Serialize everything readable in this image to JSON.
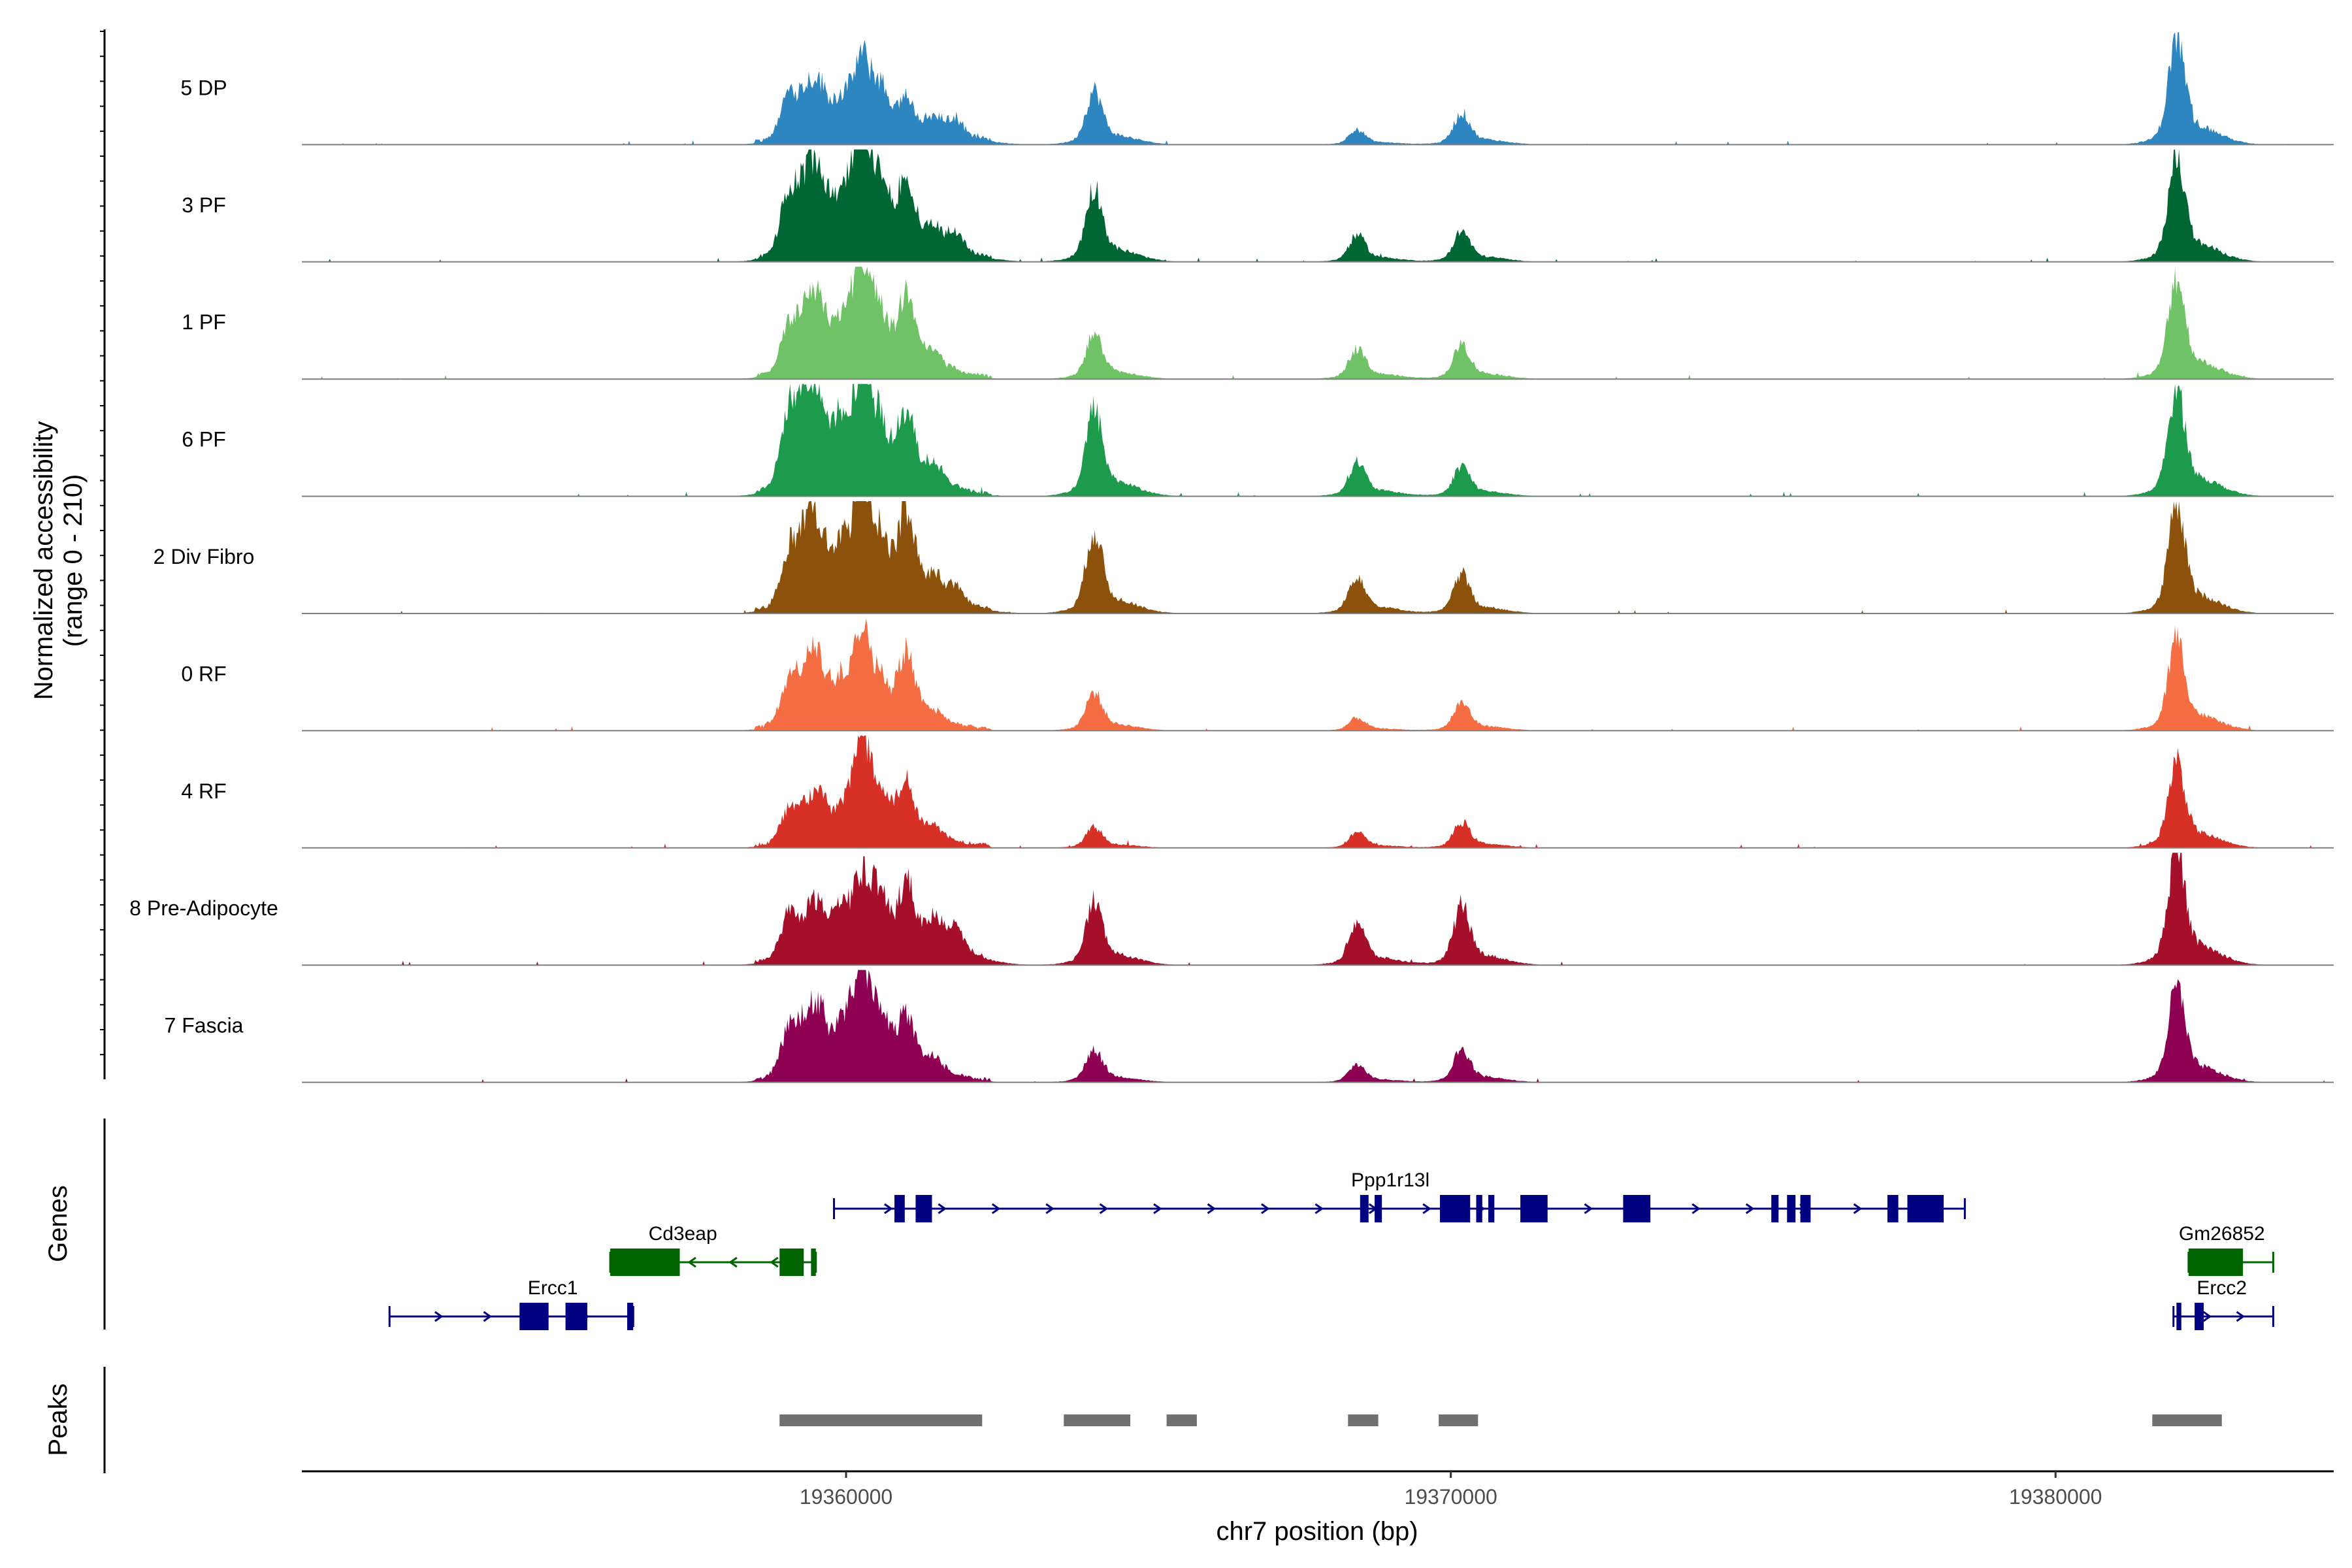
{
  "chart_data": {
    "type": "area",
    "title": "",
    "chromosome": "chr7",
    "xlabel": "chr7 position (bp)",
    "ylabel": "Normalized accessibility",
    "ylabel_range": "(range 0 - 210)",
    "xlim": [
      19351000,
      19384600
    ],
    "ylim": [
      0,
      210
    ],
    "x_ticks": [
      19360000,
      19370000,
      19380000
    ],
    "x_tick_labels": [
      "19360000",
      "19370000",
      "19380000"
    ],
    "tracks": [
      {
        "name": "5 DP",
        "color": "#2E86C1",
        "start": 19351000,
        "end": 19384600,
        "scale": 0.88,
        "peaks": [
          [
            19359050,
            0.4
          ],
          [
            19359330,
            0.3
          ],
          [
            19359550,
            0.36
          ],
          [
            19359920,
            0.24
          ],
          [
            19360250,
            0.62
          ],
          [
            19360550,
            0.36
          ],
          [
            19361000,
            0.28
          ],
          [
            19361450,
            0.15
          ],
          [
            19361800,
            0.17
          ],
          [
            19364100,
            0.48
          ],
          [
            19368450,
            0.13
          ],
          [
            19370180,
            0.28
          ],
          [
            19382000,
            0.95
          ]
        ]
      },
      {
        "name": "3 PF",
        "color": "#006633",
        "start": 19351000,
        "end": 19384600,
        "scale": 1.0,
        "peaks": [
          [
            19359050,
            0.48
          ],
          [
            19359330,
            0.44
          ],
          [
            19359550,
            0.52
          ],
          [
            19359920,
            0.3
          ],
          [
            19360250,
            0.88
          ],
          [
            19360550,
            0.45
          ],
          [
            19361000,
            0.48
          ],
          [
            19361450,
            0.15
          ],
          [
            19361800,
            0.15
          ],
          [
            19364100,
            0.58
          ],
          [
            19368450,
            0.21
          ],
          [
            19370180,
            0.24
          ],
          [
            19382000,
            0.82
          ]
        ]
      },
      {
        "name": "1 PF",
        "color": "#6FC266",
        "start": 19351000,
        "end": 19384600,
        "scale": 1.0,
        "peaks": [
          [
            19359050,
            0.35
          ],
          [
            19359330,
            0.38
          ],
          [
            19359550,
            0.44
          ],
          [
            19359920,
            0.26
          ],
          [
            19360250,
            0.82
          ],
          [
            19360550,
            0.3
          ],
          [
            19361000,
            0.5
          ],
          [
            19361450,
            0.1
          ],
          [
            19364100,
            0.35
          ],
          [
            19368450,
            0.24
          ],
          [
            19370180,
            0.27
          ],
          [
            19382000,
            0.8
          ]
        ]
      },
      {
        "name": "6 PF",
        "color": "#1E9A4C",
        "start": 19351000,
        "end": 19384600,
        "scale": 1.0,
        "peaks": [
          [
            19359050,
            0.58
          ],
          [
            19359330,
            0.54
          ],
          [
            19359550,
            0.52
          ],
          [
            19359920,
            0.4
          ],
          [
            19360250,
            0.68
          ],
          [
            19360550,
            0.42
          ],
          [
            19361000,
            0.5
          ],
          [
            19361450,
            0.14
          ],
          [
            19364100,
            0.68
          ],
          [
            19368450,
            0.27
          ],
          [
            19370180,
            0.24
          ],
          [
            19382000,
            0.86
          ]
        ]
      },
      {
        "name": "2 Div Fibro",
        "color": "#8C510A",
        "start": 19352500,
        "end": 19384600,
        "scale": 1.0,
        "peaks": [
          [
            19359050,
            0.42
          ],
          [
            19359330,
            0.48
          ],
          [
            19359550,
            0.46
          ],
          [
            19359920,
            0.3
          ],
          [
            19360250,
            0.86
          ],
          [
            19360550,
            0.36
          ],
          [
            19361000,
            0.66
          ],
          [
            19361450,
            0.15
          ],
          [
            19361800,
            0.12
          ],
          [
            19364100,
            0.65
          ],
          [
            19368450,
            0.3
          ],
          [
            19370180,
            0.3
          ],
          [
            19382000,
            0.85
          ]
        ]
      },
      {
        "name": "0 RF",
        "color": "#F46D43",
        "start": 19351000,
        "end": 19384600,
        "scale": 1.0,
        "peaks": [
          [
            19359050,
            0.32
          ],
          [
            19359330,
            0.35
          ],
          [
            19359550,
            0.36
          ],
          [
            19359920,
            0.24
          ],
          [
            19360250,
            0.7
          ],
          [
            19360550,
            0.22
          ],
          [
            19361000,
            0.48
          ],
          [
            19361450,
            0.06
          ],
          [
            19364100,
            0.3
          ],
          [
            19368450,
            0.1
          ],
          [
            19370180,
            0.22
          ],
          [
            19382000,
            0.72
          ]
        ]
      },
      {
        "name": "4 RF",
        "color": "#D73027",
        "start": 19351000,
        "end": 19384600,
        "scale": 1.0,
        "peaks": [
          [
            19359050,
            0.26
          ],
          [
            19359330,
            0.2
          ],
          [
            19359550,
            0.28
          ],
          [
            19359920,
            0.16
          ],
          [
            19360250,
            0.78
          ],
          [
            19360550,
            0.3
          ],
          [
            19361000,
            0.38
          ],
          [
            19361450,
            0.08
          ],
          [
            19364100,
            0.16
          ],
          [
            19368450,
            0.12
          ],
          [
            19370180,
            0.2
          ],
          [
            19382000,
            0.68
          ]
        ]
      },
      {
        "name": "8 Pre-Adipocyte",
        "color": "#A50F2A",
        "start": 19352500,
        "end": 19384600,
        "scale": 1.0,
        "peaks": [
          [
            19359050,
            0.36
          ],
          [
            19359330,
            0.22
          ],
          [
            19359550,
            0.32
          ],
          [
            19359920,
            0.3
          ],
          [
            19360250,
            0.56
          ],
          [
            19360550,
            0.4
          ],
          [
            19361000,
            0.5
          ],
          [
            19361450,
            0.24
          ],
          [
            19361800,
            0.2
          ],
          [
            19364100,
            0.5
          ],
          [
            19368450,
            0.34
          ],
          [
            19370180,
            0.46
          ],
          [
            19382000,
            0.92
          ]
        ]
      },
      {
        "name": "7 Fascia",
        "color": "#8E0152",
        "start": 19352500,
        "end": 19384600,
        "scale": 1.0,
        "peaks": [
          [
            19359050,
            0.36
          ],
          [
            19359330,
            0.35
          ],
          [
            19359550,
            0.38
          ],
          [
            19359920,
            0.26
          ],
          [
            19360250,
            0.82
          ],
          [
            19360550,
            0.35
          ],
          [
            19361000,
            0.38
          ],
          [
            19361450,
            0.1
          ],
          [
            19364100,
            0.26
          ],
          [
            19368450,
            0.14
          ],
          [
            19370180,
            0.26
          ],
          [
            19382000,
            0.74
          ]
        ]
      }
    ],
    "genes": {
      "title": "Genes",
      "items": [
        {
          "name": "Ercc1",
          "strand": "+",
          "color": "#000080",
          "row": 3,
          "start": 19352450,
          "end": 19356480,
          "label_at": 19355150,
          "exons": [
            [
              19354600,
              19355080
            ],
            [
              19355360,
              19355720
            ],
            [
              19356380,
              19356480
            ]
          ]
        },
        {
          "name": "Cd3eap",
          "strand": "-",
          "color": "#006400",
          "row": 2,
          "start": 19356100,
          "end": 19359500,
          "label_at": 19357300,
          "exons": [
            [
              19356100,
              19357250
            ],
            [
              19358900,
              19359300
            ],
            [
              19359420,
              19359500
            ]
          ]
        },
        {
          "name": "Ppp1r13l",
          "strand": "+",
          "color": "#000080",
          "row": 1,
          "start": 19359800,
          "end": 19378500,
          "label_at": 19369000,
          "exons": [
            [
              19360800,
              19360970
            ],
            [
              19361150,
              19361420
            ],
            [
              19368500,
              19368640
            ],
            [
              19368740,
              19368860
            ],
            [
              19369820,
              19370320
            ],
            [
              19370420,
              19370520
            ],
            [
              19370620,
              19370720
            ],
            [
              19371150,
              19371600
            ],
            [
              19372850,
              19373300
            ],
            [
              19375300,
              19375420
            ],
            [
              19375560,
              19375700
            ],
            [
              19375780,
              19375950
            ],
            [
              19377220,
              19377400
            ],
            [
              19377550,
              19378150
            ]
          ]
        },
        {
          "name": "Gm26852",
          "strand": "-",
          "color": "#006400",
          "row": 2,
          "start": 19382200,
          "end": 19383600,
          "label_at": 19382750,
          "exons": [
            [
              19382200,
              19383100
            ]
          ]
        },
        {
          "name": "Ercc2",
          "strand": "+",
          "color": "#000080",
          "row": 3,
          "start": 19381950,
          "end": 19383600,
          "label_at": 19382750,
          "exons": [
            [
              19382000,
              19382080
            ],
            [
              19382300,
              19382450
            ]
          ]
        }
      ]
    },
    "peaks": {
      "title": "Peaks",
      "color": "#707070",
      "regions": [
        [
          19358900,
          19362250
        ],
        [
          19363600,
          19364700
        ],
        [
          19365300,
          19365800
        ],
        [
          19368300,
          19368800
        ],
        [
          19369800,
          19370450
        ],
        [
          19381600,
          19382750
        ]
      ]
    }
  }
}
